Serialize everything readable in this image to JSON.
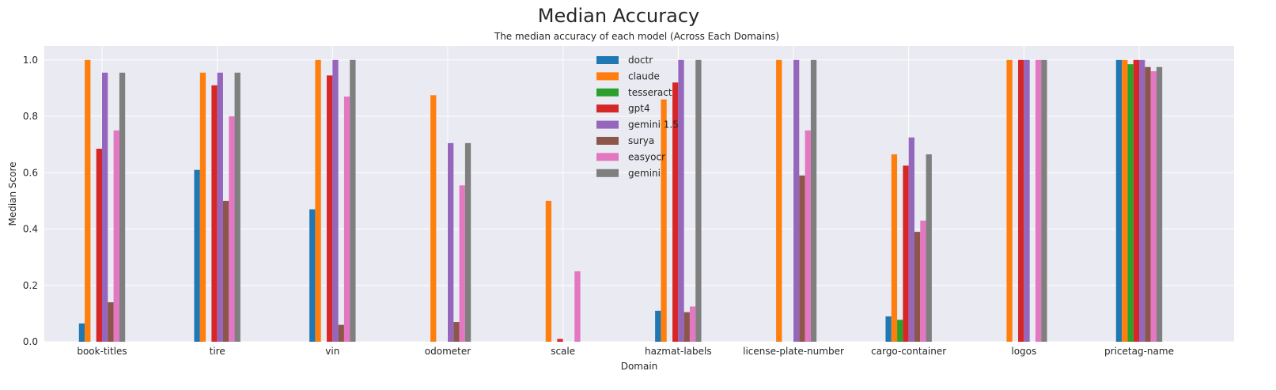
{
  "chart_data": {
    "type": "bar",
    "title": "Median Accuracy",
    "subtitle": "The median accuracy of each model (Across Each Domains)",
    "xlabel": "Domain",
    "ylabel": "Median Score",
    "ylim": [
      0,
      1.05
    ],
    "yticks": [
      "0.0",
      "0.2",
      "0.4",
      "0.6",
      "0.8",
      "1.0"
    ],
    "grid": true,
    "legend_position": "top-center",
    "categories": [
      "book-titles",
      "tire",
      "vin",
      "odometer",
      "scale",
      "hazmat-labels",
      "license-plate-number",
      "cargo-container",
      "logos",
      "pricetag-name"
    ],
    "series": [
      {
        "name": "doctr",
        "color": "#1f77b4",
        "values": [
          0.065,
          0.61,
          0.47,
          0,
          0,
          0.11,
          0,
          0.09,
          0,
          1.0
        ]
      },
      {
        "name": "claude",
        "color": "#ff7f0e",
        "values": [
          1.0,
          0.955,
          1.0,
          0.875,
          0.5,
          0.86,
          1.0,
          0.665,
          1.0,
          1.0
        ]
      },
      {
        "name": "tesseract",
        "color": "#2ca02c",
        "values": [
          0,
          0,
          0,
          0,
          0,
          0,
          0,
          0.078,
          0,
          0.985
        ]
      },
      {
        "name": "gpt4",
        "color": "#d62728",
        "values": [
          0.685,
          0.91,
          0.945,
          0,
          0.01,
          0.92,
          0,
          0.625,
          1.0,
          1.0
        ]
      },
      {
        "name": "gemini 1.5",
        "color": "#9467bd",
        "values": [
          0.955,
          0.955,
          1.0,
          0.705,
          0,
          1.0,
          1.0,
          0.725,
          1.0,
          1.0
        ]
      },
      {
        "name": "surya",
        "color": "#8c564b",
        "values": [
          0.14,
          0.5,
          0.06,
          0.07,
          0,
          0.105,
          0.59,
          0.39,
          0,
          0.975
        ]
      },
      {
        "name": "easyocr",
        "color": "#e377c2",
        "values": [
          0.75,
          0.8,
          0.87,
          0.555,
          0.25,
          0.125,
          0.75,
          0.43,
          1.0,
          0.96
        ]
      },
      {
        "name": "gemini",
        "color": "#7f7f7f",
        "values": [
          0.955,
          0.955,
          1.0,
          0.705,
          0,
          1.0,
          1.0,
          0.665,
          1.0,
          0.975
        ]
      }
    ]
  }
}
